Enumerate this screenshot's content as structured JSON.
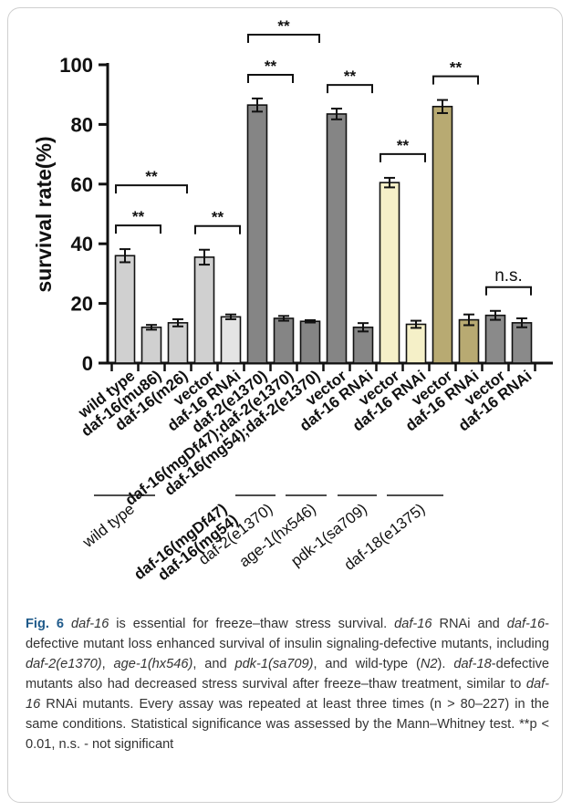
{
  "chart_data": {
    "type": "bar",
    "ylabel": "survival rate(%)",
    "ylim": [
      0,
      100
    ],
    "yticks": [
      0,
      20,
      40,
      60,
      80,
      100
    ],
    "categories": [
      "wild type",
      "daf-16(mu86)",
      "daf-16(m26)",
      "vector",
      "daf-16 RNAi",
      "daf-2(e1370)",
      "daf-16(mgDf47);daf-2(e1370)",
      "daf-16(mg54);daf-2(e1370)",
      "vector",
      "daf-16 RNAi",
      "vector",
      "daf-16 RNAi",
      "vector",
      "daf-16 RNAi",
      "vector",
      "daf-16 RNAi"
    ],
    "values": [
      36,
      12,
      13.5,
      35.5,
      15.5,
      86.5,
      15,
      14,
      83.5,
      12,
      60.5,
      13,
      86,
      14.5,
      16,
      13.5
    ],
    "errors": [
      2.2,
      0.8,
      1.2,
      2.5,
      0.8,
      2.2,
      0.8,
      0.4,
      1.8,
      1.4,
      1.6,
      1.2,
      2.2,
      1.8,
      1.5,
      1.5
    ],
    "colors": [
      "#d0d0d0",
      "#d0d0d0",
      "#d0d0d0",
      "#d0d0d0",
      "#e4e4e4",
      "#858585",
      "#858585",
      "#858585",
      "#858585",
      "#858585",
      "#f5f0c8",
      "#f5f0c8",
      "#b8aa72",
      "#b8aa72",
      "#8a8a8a",
      "#8a8a8a"
    ],
    "groups": [
      {
        "label": "wild type",
        "first": 0,
        "last": 4
      },
      {
        "label": "daf-16(mgDf47)",
        "first": 6,
        "last": 6
      },
      {
        "label": "daf-16(mg54)",
        "first": 7,
        "last": 7
      },
      {
        "label": "daf-2(e1370)",
        "first": 5,
        "last": 7
      },
      {
        "label": "age-1(hx546)",
        "first": 8,
        "last": 9
      },
      {
        "label": "pdk-1(sa709)",
        "first": 10,
        "last": 11
      },
      {
        "label": "daf-18(e1375)",
        "first": 12,
        "last": 13
      }
    ],
    "significance": [
      {
        "from": 0,
        "to": 1,
        "label": "**"
      },
      {
        "from": 0,
        "to": 2,
        "label": "**"
      },
      {
        "from": 3,
        "to": 4,
        "label": "**"
      },
      {
        "from": 5,
        "to": 6,
        "label": "**"
      },
      {
        "from": 5,
        "to": 7,
        "label": "**"
      },
      {
        "from": 8,
        "to": 9,
        "label": "**"
      },
      {
        "from": 10,
        "to": 11,
        "label": "**"
      },
      {
        "from": 12,
        "to": 13,
        "label": "**"
      },
      {
        "from": 14,
        "to": 15,
        "label": "n.s."
      }
    ]
  },
  "caption": {
    "fig_label": "Fig. 6",
    "s1": "daf-16",
    "s2": " is essential for freeze–thaw stress survival. ",
    "s3": "daf-16",
    "s4": " RNAi and ",
    "s5": "daf-16",
    "s6": "-defective mutant loss enhanced survival of insulin signaling-defective mutants, including ",
    "s7": "daf-2(e1370)",
    "s8": ", ",
    "s9": "age-1(hx546)",
    "s10": ", and ",
    "s11": "pdk-1(sa709)",
    "s12": ", and wild-type (",
    "s13": "N2",
    "s14": "). ",
    "s15": "daf-18",
    "s16": "-defective mutants also had decreased stress survival after freeze–thaw treatment, similar to ",
    "s17": "daf-16",
    "s18": " RNAi mutants. Every assay was repeated at least three times (n > 80–227) in the same conditions. Statistical significance was assessed by the Mann–Whitney test. **p < 0.01, n.s. - not significant"
  }
}
